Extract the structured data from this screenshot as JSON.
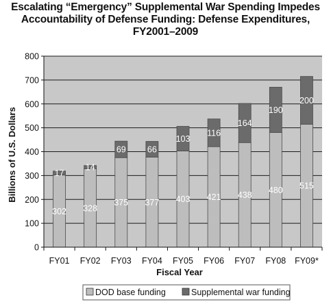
{
  "chart_data": {
    "type": "bar",
    "stacked": true,
    "title_lines": [
      "Escalating “Emergency” Supplemental War Spending Impedes",
      "Accountability of Defense Funding: Defense Expenditures,",
      "FY2001–2009"
    ],
    "xlabel": "Fiscal Year",
    "ylabel": "Billions of U.S. Dollars",
    "ylim": [
      0,
      800
    ],
    "yticks": [
      0,
      100,
      200,
      300,
      400,
      500,
      600,
      700,
      800
    ],
    "grid": true,
    "legend_position": "bottom",
    "categories": [
      "FY01",
      "FY02",
      "FY03",
      "FY04",
      "FY05",
      "FY06",
      "FY07",
      "FY08",
      "FY09*"
    ],
    "series": [
      {
        "name": "DOD base funding",
        "color": "#bdbdbd",
        "values": [
          302,
          328,
          375,
          377,
          403,
          421,
          438,
          480,
          515
        ]
      },
      {
        "name": "Supplemental war funding",
        "color": "#6b6b6b",
        "values": [
          17,
          14,
          69,
          66,
          103,
          116,
          164,
          190,
          200
        ]
      }
    ],
    "colors": {
      "plot_background": "#c8c8c8",
      "gridline": "#1a1a1a"
    }
  }
}
